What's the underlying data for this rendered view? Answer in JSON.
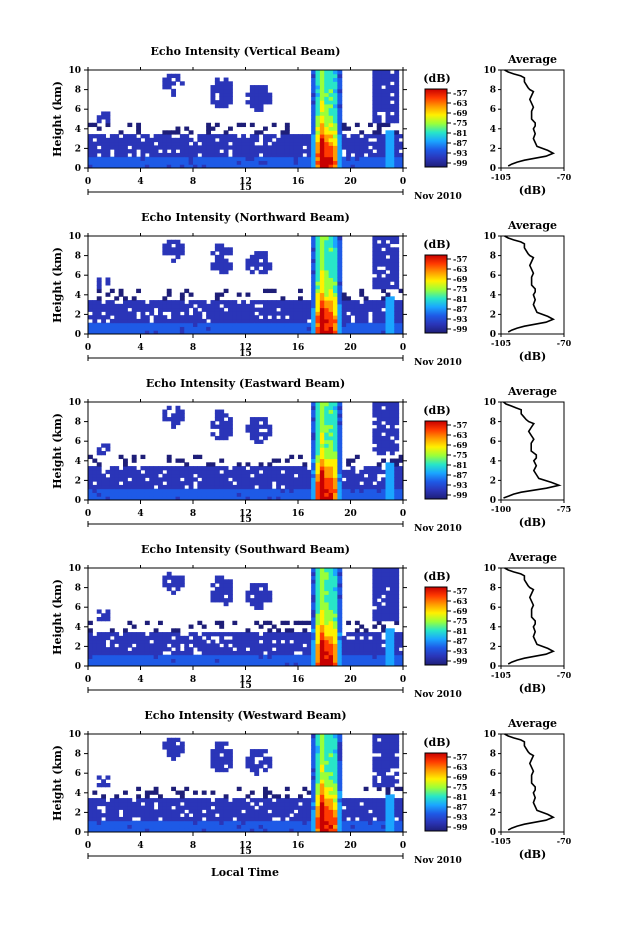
{
  "figure": {
    "xaxis_label": "Local Time"
  },
  "chart_data": [
    {
      "type": "heatmap",
      "title": "Echo Intensity (Vertical Beam)",
      "ylabel": "Height (km)",
      "xticks": [
        "0",
        "4",
        "8",
        "12",
        "16",
        "20",
        "0"
      ],
      "xlim": [
        0,
        24
      ],
      "yticks": [
        "0",
        "2",
        "4",
        "6",
        "8",
        "10"
      ],
      "ylim": [
        0,
        10
      ],
      "day_label": "15",
      "date_label": "Nov 2010",
      "colorbar": {
        "unit": "(dB)",
        "ticks": [
          "-57",
          "-63",
          "-69",
          "-75",
          "-81",
          "-87",
          "-93",
          "-99"
        ]
      },
      "profile": {
        "title": "Average",
        "xlabel": "(dB)",
        "xticks": [
          "-105",
          "-70"
        ],
        "xlim": [
          -105,
          -70
        ],
        "yticks": [
          "0",
          "2",
          "4",
          "6",
          "8",
          "10"
        ],
        "ylim": [
          0,
          10
        ],
        "x": [
          -101,
          -99,
          -96,
          -92,
          -86,
          -80,
          -76,
          -79,
          -85,
          -86,
          -87,
          -86,
          -87,
          -86,
          -86,
          -88,
          -88,
          -88,
          -87,
          -88,
          -89,
          -88,
          -87,
          -89,
          -90,
          -91,
          -92,
          -92,
          -92,
          -94,
          -98,
          -101,
          -103
        ],
        "y": [
          0.2,
          0.4,
          0.6,
          0.8,
          1.0,
          1.2,
          1.5,
          1.8,
          2.2,
          2.6,
          3.0,
          3.5,
          4.0,
          4.3,
          4.6,
          5.0,
          5.4,
          5.8,
          6.2,
          6.6,
          7.0,
          7.4,
          7.8,
          8.0,
          8.2,
          8.5,
          8.8,
          9.0,
          9.2,
          9.4,
          9.6,
          9.8,
          10.0
        ]
      }
    },
    {
      "type": "heatmap",
      "title": "Echo Intensity (Northward Beam)",
      "ylabel": "Height (km)",
      "xticks": [
        "0",
        "4",
        "8",
        "12",
        "16",
        "20",
        "0"
      ],
      "xlim": [
        0,
        24
      ],
      "yticks": [
        "0",
        "2",
        "4",
        "6",
        "8",
        "10"
      ],
      "ylim": [
        0,
        10
      ],
      "day_label": "15",
      "date_label": "Nov 2010",
      "colorbar": {
        "unit": "(dB)",
        "ticks": [
          "-57",
          "-63",
          "-69",
          "-75",
          "-81",
          "-87",
          "-93",
          "-99"
        ]
      },
      "profile": {
        "title": "Average",
        "xlabel": "(dB)",
        "xticks": [
          "-105",
          "-70"
        ],
        "xlim": [
          -105,
          -70
        ],
        "yticks": [
          "0",
          "2",
          "4",
          "6",
          "8",
          "10"
        ],
        "ylim": [
          0,
          10
        ],
        "x": [
          -101,
          -99,
          -96,
          -92,
          -86,
          -80,
          -76,
          -79,
          -85,
          -86,
          -87,
          -86,
          -87,
          -86,
          -86,
          -88,
          -88,
          -88,
          -87,
          -88,
          -89,
          -88,
          -87,
          -89,
          -90,
          -91,
          -92,
          -92,
          -92,
          -94,
          -98,
          -101,
          -103
        ],
        "y": [
          0.2,
          0.4,
          0.6,
          0.8,
          1.0,
          1.2,
          1.5,
          1.8,
          2.2,
          2.6,
          3.0,
          3.5,
          4.0,
          4.3,
          4.6,
          5.0,
          5.4,
          5.8,
          6.2,
          6.6,
          7.0,
          7.4,
          7.8,
          8.0,
          8.2,
          8.5,
          8.8,
          9.0,
          9.2,
          9.4,
          9.6,
          9.8,
          10.0
        ]
      }
    },
    {
      "type": "heatmap",
      "title": "Echo Intensity (Eastward Beam)",
      "ylabel": "Height (km)",
      "xticks": [
        "0",
        "4",
        "8",
        "12",
        "16",
        "20",
        "0"
      ],
      "xlim": [
        0,
        24
      ],
      "yticks": [
        "0",
        "2",
        "4",
        "6",
        "8",
        "10"
      ],
      "ylim": [
        0,
        10
      ],
      "day_label": "15",
      "date_label": "Nov 2010",
      "colorbar": {
        "unit": "(dB)",
        "ticks": [
          "-57",
          "-63",
          "-69",
          "-75",
          "-81",
          "-87",
          "-93",
          "-99"
        ]
      },
      "profile": {
        "title": "Average",
        "xlabel": "(dB)",
        "xticks": [
          "-100",
          "-75"
        ],
        "xlim": [
          -100,
          -75
        ],
        "yticks": [
          "0",
          "2",
          "4",
          "6",
          "8",
          "10"
        ],
        "ylim": [
          0,
          10
        ],
        "x": [
          -99,
          -97,
          -95,
          -92,
          -87,
          -82,
          -77,
          -80,
          -85,
          -86,
          -87,
          -86,
          -87,
          -86,
          -86,
          -88,
          -88,
          -88,
          -87,
          -88,
          -89,
          -88,
          -87,
          -89,
          -90,
          -91,
          -92,
          -92,
          -92,
          -94,
          -96,
          -98,
          -99
        ],
        "y": [
          0.2,
          0.4,
          0.6,
          0.8,
          1.0,
          1.2,
          1.5,
          1.8,
          2.2,
          2.6,
          3.0,
          3.5,
          4.0,
          4.3,
          4.6,
          5.0,
          5.4,
          5.8,
          6.2,
          6.6,
          7.0,
          7.4,
          7.8,
          8.0,
          8.2,
          8.5,
          8.8,
          9.0,
          9.2,
          9.4,
          9.6,
          9.8,
          10.0
        ]
      }
    },
    {
      "type": "heatmap",
      "title": "Echo Intensity (Southward Beam)",
      "ylabel": "Height (km)",
      "xticks": [
        "0",
        "4",
        "8",
        "12",
        "16",
        "20",
        "0"
      ],
      "xlim": [
        0,
        24
      ],
      "yticks": [
        "0",
        "2",
        "4",
        "6",
        "8",
        "10"
      ],
      "ylim": [
        0,
        10
      ],
      "day_label": "15",
      "date_label": "Nov 2010",
      "colorbar": {
        "unit": "(dB)",
        "ticks": [
          "-57",
          "-63",
          "-69",
          "-75",
          "-81",
          "-87",
          "-93",
          "-99"
        ]
      },
      "profile": {
        "title": "Average",
        "xlabel": "(dB)",
        "xticks": [
          "-105",
          "-70"
        ],
        "xlim": [
          -105,
          -70
        ],
        "yticks": [
          "0",
          "2",
          "4",
          "6",
          "8",
          "10"
        ],
        "ylim": [
          0,
          10
        ],
        "x": [
          -101,
          -99,
          -96,
          -92,
          -86,
          -80,
          -76,
          -79,
          -85,
          -86,
          -87,
          -86,
          -87,
          -86,
          -86,
          -88,
          -88,
          -88,
          -87,
          -88,
          -89,
          -88,
          -87,
          -89,
          -90,
          -91,
          -92,
          -92,
          -92,
          -94,
          -98,
          -101,
          -103
        ],
        "y": [
          0.2,
          0.4,
          0.6,
          0.8,
          1.0,
          1.2,
          1.5,
          1.8,
          2.2,
          2.6,
          3.0,
          3.5,
          4.0,
          4.3,
          4.6,
          5.0,
          5.4,
          5.8,
          6.2,
          6.6,
          7.0,
          7.4,
          7.8,
          8.0,
          8.2,
          8.5,
          8.8,
          9.0,
          9.2,
          9.4,
          9.6,
          9.8,
          10.0
        ]
      }
    },
    {
      "type": "heatmap",
      "title": "Echo Intensity (Westward Beam)",
      "ylabel": "Height (km)",
      "xticks": [
        "0",
        "4",
        "8",
        "12",
        "16",
        "20",
        "0"
      ],
      "xlim": [
        0,
        24
      ],
      "yticks": [
        "0",
        "2",
        "4",
        "6",
        "8",
        "10"
      ],
      "ylim": [
        0,
        10
      ],
      "day_label": "15",
      "date_label": "Nov 2010",
      "colorbar": {
        "unit": "(dB)",
        "ticks": [
          "-57",
          "-63",
          "-69",
          "-75",
          "-81",
          "-87",
          "-93",
          "-99"
        ]
      },
      "profile": {
        "title": "Average",
        "xlabel": "(dB)",
        "xticks": [
          "-105",
          "-70"
        ],
        "xlim": [
          -105,
          -70
        ],
        "yticks": [
          "0",
          "2",
          "4",
          "6",
          "8",
          "10"
        ],
        "ylim": [
          0,
          10
        ],
        "x": [
          -101,
          -99,
          -96,
          -92,
          -86,
          -80,
          -76,
          -79,
          -85,
          -86,
          -87,
          -86,
          -87,
          -86,
          -86,
          -88,
          -88,
          -88,
          -87,
          -88,
          -89,
          -88,
          -87,
          -89,
          -90,
          -91,
          -92,
          -92,
          -92,
          -94,
          -98,
          -101,
          -103
        ],
        "y": [
          0.2,
          0.4,
          0.6,
          0.8,
          1.0,
          1.2,
          1.5,
          1.8,
          2.2,
          2.6,
          3.0,
          3.5,
          4.0,
          4.3,
          4.6,
          5.0,
          5.4,
          5.8,
          6.2,
          6.6,
          7.0,
          7.4,
          7.8,
          8.0,
          8.2,
          8.5,
          8.8,
          9.0,
          9.2,
          9.4,
          9.6,
          9.8,
          10.0
        ]
      }
    }
  ]
}
